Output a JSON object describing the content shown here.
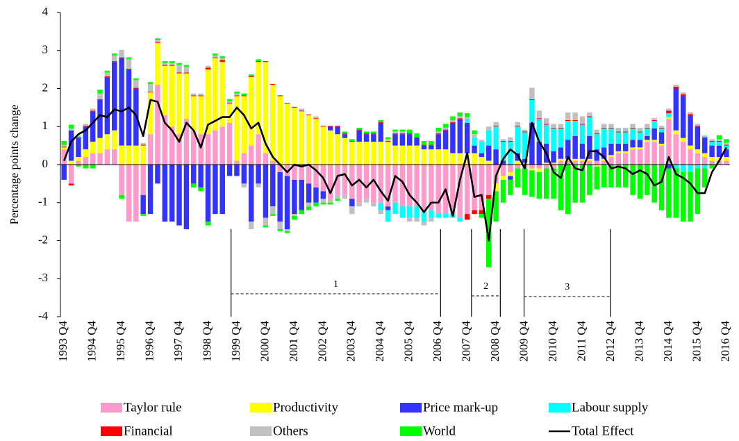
{
  "chart_data": {
    "type": "bar",
    "stacked": true,
    "ylabel": "Percentage points change",
    "ylim": [
      -4,
      4
    ],
    "yticks": [
      -4,
      -3,
      -2,
      -1,
      0,
      1,
      2,
      3,
      4
    ],
    "annotations": [
      "1",
      "2",
      "3"
    ],
    "categories": [
      "1993 Q4",
      null,
      null,
      null,
      "1994 Q4",
      null,
      null,
      null,
      "1995 Q4",
      null,
      null,
      null,
      "1996 Q4",
      null,
      null,
      null,
      "1997 Q4",
      null,
      null,
      null,
      "1998 Q4",
      null,
      null,
      null,
      "1999 Q4",
      null,
      null,
      null,
      "2000 Q4",
      null,
      null,
      null,
      "2001 Q4",
      null,
      null,
      null,
      "2002 Q4",
      null,
      null,
      null,
      "2003 Q4",
      null,
      null,
      null,
      "2004 Q4",
      null,
      null,
      null,
      "2005 Q4",
      null,
      null,
      null,
      "2006 Q4",
      null,
      null,
      null,
      "2007 Q4",
      null,
      null,
      null,
      "2008 Q4",
      null,
      null,
      null,
      "2009 Q4",
      null,
      null,
      null,
      "2010 Q4",
      null,
      null,
      null,
      "2011 Q4",
      null,
      null,
      null,
      "2012 Q4",
      null,
      null,
      null,
      "2013 Q4",
      null,
      null,
      null,
      "2014 Q4",
      null,
      null,
      null,
      "2015 Q4",
      null,
      null,
      null,
      "2016 Q4"
    ],
    "series": [
      {
        "name": "Taylor rule",
        "color": "#ff99cc",
        "values": [
          0.4,
          -0.5,
          0.1,
          0.2,
          0.3,
          0.3,
          0.4,
          0.4,
          -0.8,
          -1.5,
          -1.5,
          -0.8,
          0.8,
          2.1,
          1.3,
          1.0,
          0.8,
          1.2,
          0.9,
          0.8,
          0.8,
          0.9,
          1.0,
          1.1,
          0.1,
          0.3,
          0.5,
          0.8,
          0.3,
          0.1,
          -0.2,
          -0.3,
          -0.4,
          -0.4,
          -0.5,
          -0.6,
          -0.7,
          -0.9,
          -0.8,
          -0.8,
          -0.9,
          -1.0,
          -0.9,
          -1.0,
          -1.0,
          -1.1,
          -1.0,
          -1.1,
          -1.1,
          -1.1,
          -1.2,
          -1.2,
          -1.3,
          -1.3,
          -1.3,
          -1.4,
          -1.3,
          -1.2,
          -1.2,
          -0.8,
          -0.5,
          -0.3,
          -0.2,
          -0.1,
          -0.1,
          -0.1,
          -0.1,
          -0.1,
          -0.1,
          0.1,
          0.1,
          0.1,
          0.1,
          0.1,
          0.1,
          0.1,
          0.2,
          0.3,
          0.3,
          0.4,
          0.4,
          0.6,
          0.6,
          0.5,
          1.2,
          0.8,
          0.6,
          0.4,
          0.3,
          0.2,
          0.1,
          0.1,
          0.1
        ]
      },
      {
        "name": "Productivity",
        "color": "#ffff00",
        "values": [
          0.05,
          0.1,
          0.1,
          0.2,
          0.3,
          0.4,
          0.4,
          0.5,
          0.5,
          0.5,
          0.5,
          0.5,
          1.1,
          1.1,
          1.3,
          1.6,
          1.6,
          1.2,
          0.9,
          1.0,
          1.7,
          1.9,
          1.7,
          0.5,
          1.7,
          1.5,
          1.8,
          1.9,
          2.4,
          2.0,
          1.8,
          1.6,
          1.5,
          1.4,
          1.3,
          1.2,
          1.0,
          0.9,
          0.8,
          0.7,
          0.6,
          0.6,
          0.6,
          0.6,
          0.6,
          0.6,
          0.5,
          0.5,
          0.5,
          0.5,
          0.4,
          0.4,
          0.4,
          0.4,
          0.3,
          0.3,
          0.3,
          0.3,
          0.2,
          0.1,
          -0.2,
          -0.1,
          -0.1,
          0.1,
          0.05,
          -0.05,
          -0.1,
          0.05,
          0.05,
          0.05,
          0.05,
          0.05,
          0.05,
          0.05,
          -0.05,
          0.05,
          0.05,
          0.05,
          0.05,
          0.05,
          0.05,
          0.05,
          0.05,
          0.05,
          0.05,
          0.1,
          0.1,
          0.1,
          0.1,
          0.1,
          0.1,
          0.1,
          0.1
        ]
      },
      {
        "name": "Price mark-up",
        "color": "#3333ff",
        "values": [
          -0.4,
          0.8,
          0.5,
          0.6,
          0.8,
          1.0,
          1.5,
          1.8,
          2.3,
          2.0,
          1.5,
          -0.5,
          -1.3,
          -0.5,
          -1.5,
          -1.5,
          -1.6,
          -1.7,
          -0.5,
          -0.6,
          -1.5,
          -1.3,
          -1.3,
          -0.3,
          -0.3,
          -0.5,
          -1.5,
          -0.5,
          -1.4,
          -1.1,
          -1.3,
          -1.4,
          -0.9,
          -0.8,
          -0.5,
          -0.4,
          -0.2,
          0.1,
          0.2,
          0.1,
          -0.2,
          0.3,
          0.2,
          0.2,
          0.5,
          -0.1,
          0.3,
          0.3,
          0.3,
          0.2,
          0.1,
          0.1,
          0.4,
          0.5,
          0.8,
          0.9,
          0.8,
          0.2,
          0.1,
          0.4,
          0.4,
          0.1,
          -0.1,
          0.2,
          0.1,
          1.1,
          0.6,
          0.5,
          0.3,
          0.3,
          0.5,
          0.6,
          0.4,
          0.6,
          0.3,
          0.3,
          0.3,
          0.2,
          0.2,
          0.2,
          0.2,
          0.1,
          0.3,
          0.3,
          -0.1,
          1.1,
          1.1,
          0.8,
          0.6,
          0.4,
          0.3,
          0.3,
          0.2
        ]
      },
      {
        "name": "Labour supply",
        "color": "#00ffff",
        "values": [
          0,
          0,
          0,
          0,
          0,
          0,
          0,
          0,
          0,
          0,
          0,
          0,
          0,
          0,
          0,
          0,
          0,
          0,
          0,
          0,
          0,
          0,
          0,
          0,
          0,
          0,
          0,
          0,
          0,
          0,
          0,
          0,
          0,
          0,
          0,
          0,
          0,
          0,
          0,
          0,
          0,
          0,
          0,
          0,
          -0.2,
          -0.3,
          -0.3,
          -0.3,
          -0.3,
          -0.3,
          -0.3,
          -0.2,
          -0.1,
          -0.1,
          -0.1,
          -0.1,
          0.1,
          0.2,
          0.3,
          0.4,
          0.6,
          0.5,
          0.6,
          0.7,
          0.7,
          0.6,
          0.6,
          0.5,
          0.6,
          0.5,
          0.5,
          0.4,
          0.5,
          0.5,
          0.4,
          0.5,
          0.4,
          0.3,
          0.3,
          0.3,
          0.2,
          0.2,
          0.2,
          0.1,
          0.1,
          -0.1,
          -0.2,
          -0.2,
          -0.1,
          -0.1,
          0.1,
          0.1,
          0.1
        ]
      },
      {
        "name": "Financial",
        "color": "#ff0000",
        "values": [
          0.02,
          -0.05,
          0.02,
          0.02,
          0.02,
          0.02,
          0.02,
          0.02,
          0.02,
          0.02,
          0.02,
          0.02,
          0.02,
          0.02,
          0.02,
          0.02,
          0.02,
          0.02,
          0.02,
          0.02,
          0.05,
          0.02,
          0.05,
          0.02,
          0.02,
          0.02,
          0.02,
          0.02,
          0.02,
          0.02,
          0.02,
          0.02,
          0.02,
          0.02,
          0.02,
          0.02,
          0.02,
          0.02,
          0.02,
          0.02,
          0.02,
          0.02,
          0.02,
          0.02,
          0.02,
          0.02,
          0.02,
          0.02,
          0.02,
          0.02,
          0.02,
          0.02,
          0.02,
          0.02,
          0.02,
          0.02,
          -0.15,
          -0.1,
          -0.1,
          -0.1,
          0.02,
          0.02,
          0.02,
          0.02,
          0.02,
          0.02,
          0.02,
          0.02,
          0.02,
          0.02,
          0.02,
          0.02,
          0.02,
          0.02,
          0.02,
          0.02,
          0.02,
          0.02,
          0.02,
          0.02,
          0.02,
          0.02,
          0.02,
          0.02,
          0.07,
          0.05,
          0.05,
          0.03,
          0.02,
          0.02,
          0.02,
          0.02,
          0.02
        ]
      },
      {
        "name": "Others",
        "color": "#c0c0c0",
        "values": [
          0.05,
          0.05,
          0.05,
          0.05,
          0.05,
          0.15,
          0.1,
          0.15,
          0.2,
          0.25,
          0.2,
          0.05,
          0.2,
          0.05,
          0.05,
          0.05,
          0.2,
          0.15,
          0.05,
          0.05,
          0.05,
          0.05,
          0.05,
          0.05,
          0.05,
          -0.1,
          -0.2,
          -0.1,
          -0.2,
          -0.2,
          -0.2,
          -0.05,
          -0.05,
          0.05,
          -0.1,
          0.05,
          -0.1,
          -0.1,
          -0.1,
          -0.1,
          -0.2,
          -0.1,
          -0.1,
          -0.1,
          -0.1,
          0.05,
          0.05,
          0.05,
          -0.1,
          -0.1,
          -0.1,
          -0.1,
          0.05,
          0.05,
          0.05,
          0.05,
          0.05,
          0.1,
          0.05,
          0.1,
          0.1,
          0.05,
          0.1,
          0.1,
          0.05,
          0.3,
          0.2,
          0.15,
          0.1,
          0.1,
          0.2,
          0.2,
          0.2,
          0.1,
          0.1,
          0.1,
          0.1,
          0.1,
          0.1,
          0.1,
          0.1,
          0.1,
          0.05,
          0.05,
          0.05,
          0.05,
          0.05,
          0.05,
          0.05,
          0.05,
          0.05,
          0.05,
          0.05
        ]
      },
      {
        "name": "World",
        "color": "#00ff00",
        "values": [
          0.1,
          0.1,
          -0.05,
          -0.1,
          -0.1,
          0.1,
          0.05,
          0.05,
          -0.1,
          0.05,
          0.05,
          -0.05,
          0.05,
          0.05,
          0.05,
          0.05,
          0.05,
          0.05,
          -0.1,
          -0.1,
          -0.1,
          0.05,
          0.05,
          0.05,
          0.05,
          0.05,
          0.05,
          0.05,
          -0.05,
          -0.05,
          -0.05,
          -0.05,
          -0.1,
          -0.1,
          -0.1,
          -0.1,
          -0.05,
          -0.05,
          -0.05,
          0.05,
          0.05,
          0.05,
          0.05,
          0.05,
          0.05,
          0.05,
          0.05,
          0.05,
          0.1,
          0.1,
          0.1,
          0.1,
          0.1,
          0.1,
          0.1,
          0.1,
          0.1,
          0.1,
          -0.1,
          -1.8,
          -0.8,
          -0.6,
          -0.4,
          -0.5,
          -0.7,
          -0.7,
          -0.7,
          -0.8,
          -0.8,
          -1.2,
          -1.3,
          -1.0,
          -1.0,
          -0.8,
          -0.6,
          -0.6,
          -0.6,
          -0.6,
          -0.6,
          -0.8,
          -0.9,
          -0.8,
          -1.0,
          -1.2,
          -1.3,
          -1.3,
          -1.3,
          -1.3,
          -1.2,
          -0.5,
          -0.1,
          0.1,
          0.1
        ]
      },
      {
        "name": "Total Effect",
        "type": "line",
        "color": "#000000",
        "values": [
          0.1,
          0.6,
          0.8,
          0.9,
          1.1,
          1.3,
          1.25,
          1.45,
          1.4,
          1.5,
          1.3,
          0.75,
          1.7,
          1.65,
          1.1,
          0.9,
          0.6,
          1.1,
          0.9,
          0.45,
          1.05,
          1.15,
          1.25,
          1.25,
          1.5,
          1.3,
          0.95,
          1.1,
          0.55,
          0.2,
          0.0,
          -0.2,
          0.0,
          -0.05,
          0.0,
          -0.15,
          -0.35,
          -0.75,
          -0.3,
          -0.25,
          -0.55,
          -0.4,
          -0.6,
          -0.4,
          -0.7,
          -0.95,
          -0.3,
          -0.45,
          -0.8,
          -1.0,
          -1.25,
          -1.0,
          -1.0,
          -0.65,
          -1.35,
          -0.4,
          0.3,
          -0.85,
          -0.8,
          -2.0,
          -0.3,
          0.15,
          0.4,
          0.25,
          -0.1,
          1.1,
          0.6,
          0.3,
          -0.2,
          -0.35,
          0.2,
          -0.1,
          -0.15,
          0.35,
          0.35,
          0.2,
          -0.1,
          -0.05,
          -0.1,
          -0.25,
          -0.15,
          -0.25,
          -0.55,
          -0.45,
          0.2,
          -0.25,
          -0.35,
          -0.5,
          -0.75,
          -0.75,
          -0.2,
          0.1,
          0.45
        ]
      }
    ]
  }
}
